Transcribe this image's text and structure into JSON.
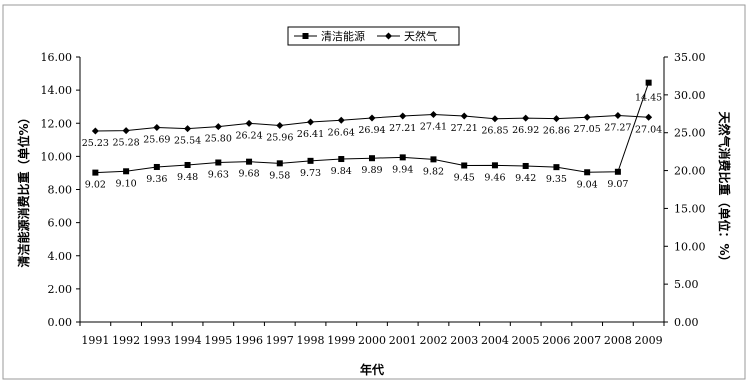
{
  "chart_data": {
    "type": "line",
    "categories": [
      "1991",
      "1992",
      "1993",
      "1994",
      "1995",
      "1996",
      "1997",
      "1998",
      "1999",
      "2000",
      "2001",
      "2002",
      "2003",
      "2004",
      "2005",
      "2006",
      "2007",
      "2008",
      "2009"
    ],
    "xlabel": "年代",
    "ylabel_left": "清洁能源消费比重（单位%）",
    "ylabel_right": "天然气消费比重（单位：%）",
    "ylim_left": [
      0,
      16
    ],
    "ylim_right": [
      0,
      35
    ],
    "yticks_left": [
      "0.00",
      "2.00",
      "4.00",
      "6.00",
      "8.00",
      "10.00",
      "12.00",
      "14.00",
      "16.00"
    ],
    "yticks_right": [
      "0.00",
      "5.00",
      "10.00",
      "15.00",
      "20.00",
      "25.00",
      "30.00",
      "35.00"
    ],
    "legend_position": "top-center",
    "series": [
      {
        "name": "清洁能源",
        "axis": "left",
        "marker": "square",
        "values": [
          9.02,
          9.1,
          9.36,
          9.48,
          9.63,
          9.68,
          9.58,
          9.73,
          9.84,
          9.89,
          9.94,
          9.82,
          9.45,
          9.46,
          9.42,
          9.35,
          9.04,
          9.07,
          14.45
        ],
        "labels": [
          "9.02",
          "9.10",
          "9.36",
          "9.48",
          "9.63",
          "9.68",
          "9.58",
          "9.73",
          "9.84",
          "9.89",
          "9.94",
          "9.82",
          "9.45",
          "9.46",
          "9.42",
          "9.35",
          "9.04",
          "9.07",
          "14.45"
        ]
      },
      {
        "name": "天然气",
        "axis": "right",
        "marker": "diamond",
        "values": [
          25.23,
          25.28,
          25.69,
          25.54,
          25.8,
          26.24,
          25.96,
          26.41,
          26.64,
          26.94,
          27.21,
          27.41,
          27.21,
          26.85,
          26.92,
          26.86,
          27.05,
          27.27,
          27.04
        ],
        "labels": [
          "25.23",
          "25.28",
          "25.69",
          "25.54",
          "25.80",
          "26.24",
          "25.96",
          "26.41",
          "26.64",
          "26.94",
          "27.21",
          "27.41",
          "27.21",
          "26.85",
          "26.92",
          "26.86",
          "27.05",
          "27.27",
          "27.04"
        ]
      }
    ]
  }
}
